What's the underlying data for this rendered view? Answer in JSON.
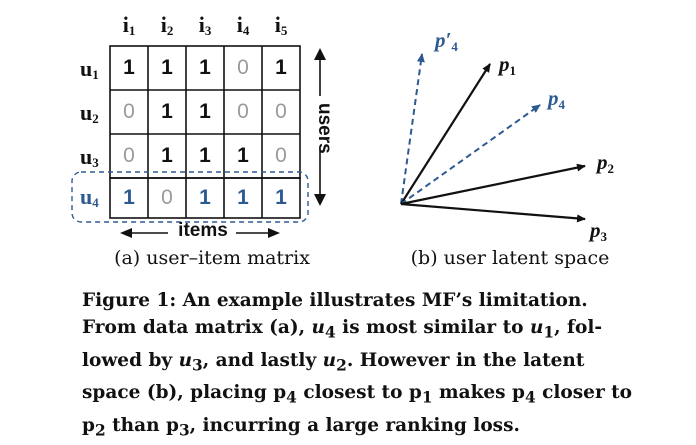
{
  "matrix": {
    "col_headers": [
      "i",
      "i",
      "i",
      "i",
      "i"
    ],
    "col_subs": [
      "1",
      "2",
      "3",
      "4",
      "5"
    ],
    "row_headers": [
      "u",
      "u",
      "u",
      "u"
    ],
    "row_subs": [
      "1",
      "2",
      "3",
      "4"
    ],
    "rows": [
      [
        "1",
        "1",
        "1",
        "0",
        "1"
      ],
      [
        "0",
        "1",
        "1",
        "0",
        "0"
      ],
      [
        "0",
        "1",
        "1",
        "1",
        "0"
      ],
      [
        "1",
        "0",
        "1",
        "1",
        "1"
      ]
    ],
    "users_label": "users",
    "items_label": "items",
    "caption": "(a) user–item matrix"
  },
  "latent": {
    "vectors": [
      {
        "label": "p′",
        "sub": "4",
        "color": "#2e5a92",
        "dashed": true
      },
      {
        "label": "p",
        "sub": "1",
        "color": "#111111",
        "dashed": false
      },
      {
        "label": "p",
        "sub": "4",
        "color": "#2e5a92",
        "dashed": true
      },
      {
        "label": "p",
        "sub": "2",
        "color": "#111111",
        "dashed": false
      },
      {
        "label": "p",
        "sub": "3",
        "color": "#111111",
        "dashed": false
      }
    ],
    "caption": "(b) user latent space"
  },
  "figure_caption": {
    "line1": "Figure 1: An example illustrates MF’s limitation.",
    "line2_a": "From data matrix (a), ",
    "line2_u4": "u",
    "line2_u4_sub": "4",
    "line2_b": " is most similar to ",
    "line2_u1": "u",
    "line2_u1_sub": "1",
    "line2_c": ", fol-",
    "line3_a": "lowed by ",
    "line3_u3": "u",
    "line3_u3_sub": "3",
    "line3_b": ", and lastly ",
    "line3_u2": "u",
    "line3_u2_sub": "2",
    "line3_c": ".  However in the latent",
    "line4_a": "space (b), placing ",
    "line4_p4": "p",
    "line4_p4_sub": "4",
    "line4_b": " closest to ",
    "line4_p1": "p",
    "line4_p1_sub": "1",
    "line4_c": " makes ",
    "line4_p4b": "p",
    "line4_p4b_sub": "4",
    "line4_d": " closer to",
    "line5_p2": "p",
    "line5_p2_sub": "2",
    "line5_a": " than ",
    "line5_p3": "p",
    "line5_p3_sub": "3",
    "line5_b": ", incurring a large ranking loss."
  },
  "colors": {
    "accent_blue": "#2e5a92",
    "zero_gray": "#9a9a9a",
    "text": "#111111"
  }
}
